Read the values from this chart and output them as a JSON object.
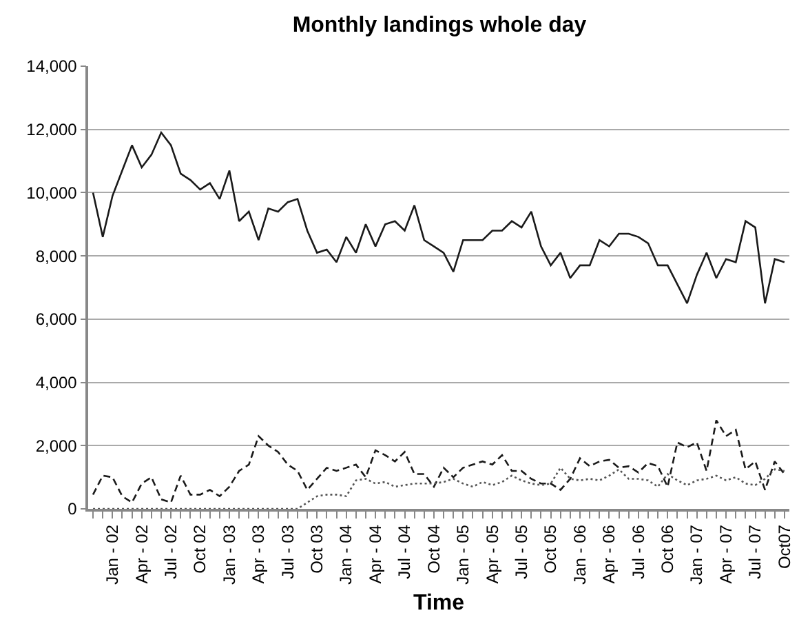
{
  "chart_data": {
    "type": "line",
    "title": "Monthly landings whole day",
    "xlabel": "Time",
    "categories": [
      null,
      null,
      "Jan - 02",
      null,
      null,
      "Apr - 02",
      null,
      null,
      "Jul - 02",
      null,
      null,
      "Oct 02",
      null,
      null,
      "Jan - 03",
      null,
      null,
      "Apr - 03",
      null,
      null,
      "Jul - 03",
      null,
      null,
      "Oct 03",
      null,
      null,
      "Jan - 04",
      null,
      null,
      "Apr - 04",
      null,
      null,
      "Jul - 04",
      null,
      null,
      "Oct 04",
      null,
      null,
      "Jan - 05",
      null,
      null,
      "Apr - 05",
      null,
      null,
      "Jul - 05",
      null,
      null,
      "Oct 05",
      null,
      null,
      "Jan - 06",
      null,
      null,
      "Apr - 06",
      null,
      null,
      "Jul - 06",
      null,
      null,
      "Oct 06",
      null,
      null,
      "Jan - 07",
      null,
      null,
      "Apr - 07",
      null,
      null,
      "Jul - 07",
      null,
      null,
      "Oct07"
    ],
    "series": [
      {
        "color": "#1a1a1a",
        "line_style": "solid",
        "values": [
          10000,
          8600,
          9900,
          10700,
          11500,
          10800,
          11200,
          11900,
          11500,
          10600,
          10400,
          10100,
          10300,
          9800,
          10700,
          9100,
          9400,
          8500,
          9500,
          9400,
          9700,
          9800,
          8800,
          8100,
          8200,
          7800,
          8600,
          8100,
          9000,
          8300,
          9000,
          9100,
          8800,
          9600,
          8500,
          8300,
          8100,
          7500,
          8500,
          8500,
          8500,
          8800,
          8800,
          9100,
          8900,
          9400,
          8300,
          7700,
          8100,
          7300,
          7700,
          7700,
          8500,
          8300,
          8700,
          8700,
          8600,
          8400,
          7700,
          7700,
          7100,
          6500,
          7400,
          8100,
          7300,
          7900,
          7800,
          9100,
          8900,
          6500,
          7900,
          7800
        ]
      },
      {
        "color": "#1a1a1a",
        "line_style": "dashed",
        "values": [
          450,
          1050,
          1000,
          400,
          200,
          800,
          1000,
          300,
          200,
          1050,
          450,
          450,
          600,
          400,
          700,
          1200,
          1400,
          2300,
          2000,
          1800,
          1400,
          1200,
          600,
          950,
          1300,
          1200,
          1300,
          1400,
          1000,
          1850,
          1700,
          1500,
          1800,
          1100,
          1100,
          700,
          1300,
          1000,
          1300,
          1400,
          1500,
          1400,
          1700,
          1200,
          1200,
          950,
          800,
          800,
          600,
          950,
          1600,
          1350,
          1500,
          1550,
          1300,
          1350,
          1150,
          1450,
          1350,
          700,
          2100,
          1950,
          2100,
          1200,
          2800,
          2300,
          2500,
          1250,
          1500,
          600,
          1500,
          1100
        ]
      },
      {
        "color": "#555555",
        "line_style": "dotted",
        "values": [
          0,
          0,
          0,
          0,
          0,
          0,
          0,
          0,
          0,
          0,
          0,
          0,
          0,
          0,
          0,
          0,
          0,
          0,
          0,
          0,
          0,
          0,
          200,
          400,
          450,
          450,
          400,
          900,
          950,
          800,
          850,
          700,
          750,
          800,
          800,
          800,
          850,
          950,
          800,
          700,
          850,
          750,
          850,
          1050,
          900,
          800,
          750,
          800,
          1300,
          950,
          900,
          950,
          900,
          1050,
          1250,
          950,
          950,
          900,
          700,
          1100,
          900,
          750,
          900,
          950,
          1050,
          900,
          1000,
          800,
          750,
          950,
          1250,
          1200
        ]
      }
    ],
    "ylim": [
      0,
      14000
    ],
    "yticks": [
      {
        "value": 0,
        "label": "0"
      },
      {
        "value": 2000,
        "label": "2,000"
      },
      {
        "value": 4000,
        "label": "4,000"
      },
      {
        "value": 6000,
        "label": "6,000"
      },
      {
        "value": 8000,
        "label": "8,000"
      },
      {
        "value": 10000,
        "label": "10,000"
      },
      {
        "value": 12000,
        "label": "12,000"
      },
      {
        "value": 14000,
        "label": "14,000"
      }
    ],
    "grid": "y",
    "marker": "none"
  }
}
